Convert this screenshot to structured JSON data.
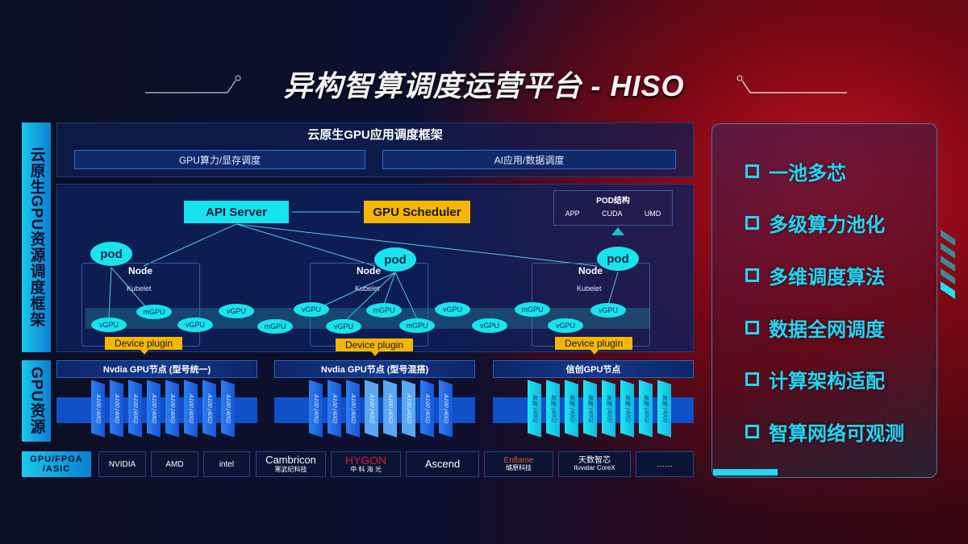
{
  "title": "异构智算调度运营平台 - HISO",
  "left_labels": {
    "framework": "云原生GPU资源调度框架",
    "resources": "GPU资源"
  },
  "framework": {
    "title": "云原生GPU应用调度框架",
    "sub": [
      "GPU算力/显存调度",
      "AI应用/数据调度"
    ]
  },
  "diagram": {
    "api_server": "API Server",
    "gpu_scheduler": "GPU Scheduler",
    "pod_struct": {
      "title": "POD结构",
      "items": [
        "APP",
        "CUDA",
        "UMD"
      ]
    },
    "pod": "pod",
    "node": "Node",
    "kubelet": "Kubelet",
    "device_plugin": "Device plugin",
    "gpus": [
      "vGPU",
      "mGPU",
      "vGPU",
      "vGPU",
      "mGPU",
      "vGPU",
      "vGPU",
      "mGPU",
      "mGPU",
      "vGPU",
      "vGPU",
      "mGPU",
      "vGPU",
      "vGPU"
    ]
  },
  "nodes": [
    {
      "title": "Nvdia GPU节点 (型号统一)",
      "chips": [
        "A100 (40G)",
        "A100 (40G)",
        "A100 (40G)",
        "A100 (40G)",
        "A100 (40G)",
        "A100 (40G)",
        "A100 (40G)",
        "A100 (40G)"
      ]
    },
    {
      "title": "Nvdia GPU节点 (型号混搭)",
      "chips": [
        "A100 (40G)",
        "A100 (40G)",
        "A100 (40G)",
        "A100 (40G)",
        "A100 (40G)",
        "A100 (40G)",
        "A100 (40G)",
        "A100 (40G)"
      ]
    },
    {
      "title": "信创GPU节点",
      "chips": [
        "昇腾 (40G)",
        "昇腾 (40G)",
        "昇腾 (40G)",
        "昇腾 (40G)",
        "昇腾 (40G)",
        "昇腾 (40G)",
        "昇腾 (40G)",
        "昇腾 (40G)"
      ]
    }
  ],
  "vendors": {
    "label": "GPU/FPGA /ASIC",
    "items": [
      {
        "name": "NVIDIA"
      },
      {
        "name": "AMD"
      },
      {
        "name": "intel"
      },
      {
        "name": "Cambricon",
        "sub": "寒武纪科技"
      },
      {
        "name": "HYGON",
        "sub": "中 科 海 光"
      },
      {
        "name": "Ascend"
      },
      {
        "name": "Enflame",
        "sub": "燧原科技"
      },
      {
        "name": "天数智芯",
        "sub": "Iluvatar CoreX"
      },
      {
        "name": "……"
      }
    ]
  },
  "features": [
    "一池多芯",
    "多级算力池化",
    "多维调度算法",
    "数据全网调度",
    "计算架构适配",
    "智算网络可观测"
  ],
  "colors": {
    "cyan": "#17e4ee",
    "orange": "#f6b600",
    "blue": "#1050c8",
    "red": "#c4101e"
  }
}
